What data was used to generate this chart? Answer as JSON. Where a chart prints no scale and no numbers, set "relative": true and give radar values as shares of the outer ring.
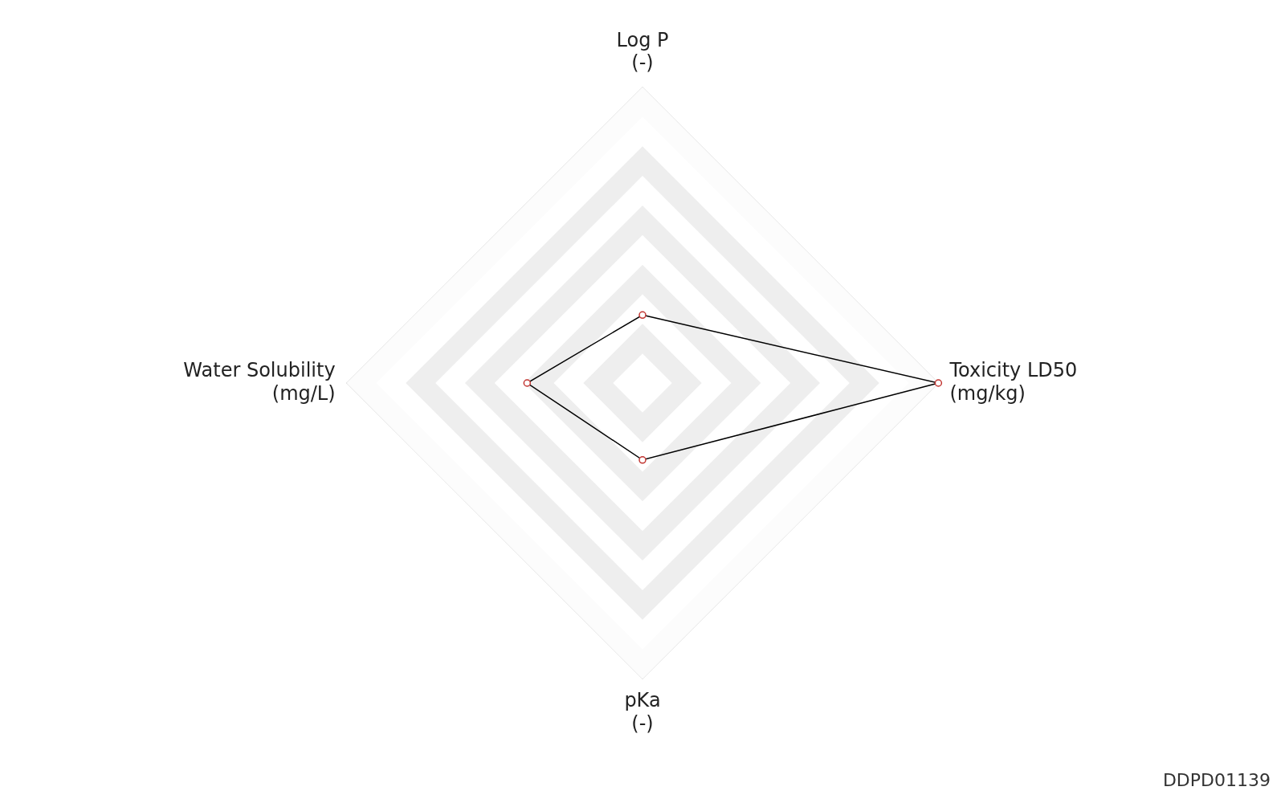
{
  "chart_data": {
    "type": "radar",
    "relative": true,
    "categories": [
      "Log P\n(-)",
      "Toxicity LD50\n(mg/kg)",
      "pKa\n(-)",
      "Water Solubility\n(mg/L)"
    ],
    "series": [
      {
        "color": "#000000",
        "values": [
          0.23,
          1,
          0.26,
          0.39
        ]
      }
    ],
    "marker": "circle",
    "grid": true,
    "legend": false,
    "annotations": [
      "DDPD01139"
    ]
  }
}
